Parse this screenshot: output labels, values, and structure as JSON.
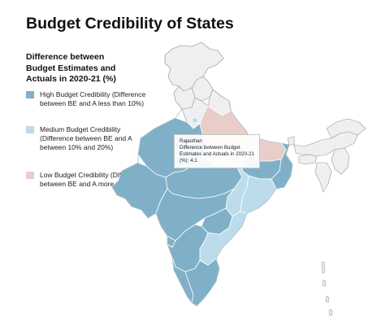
{
  "title": "Budget Credibility of States",
  "legend": {
    "title": "Difference between Budget Estimates and Actuals in 2020-21 (%)",
    "items": [
      {
        "label": "High Budget Credibility (Difference between BE and A less than 10%)",
        "color": "#7fb0c8"
      },
      {
        "label": "Medium Budget Credibility (Difference between BE and A between 10% and 20%)",
        "color": "#bcdceb"
      },
      {
        "label": "Low Budget Credibility (Difference between BE and A more than 20%)",
        "color": "#e8cdc9"
      }
    ]
  },
  "tooltip": {
    "state": "Rajasthan",
    "metric": "Difference between Budget Estimates and Actuals in 2020-21 (%):",
    "value": "4.1"
  },
  "colors": {
    "no_data": "#efefef",
    "border": "#ffffff",
    "outline": "#9a9a9a"
  }
}
